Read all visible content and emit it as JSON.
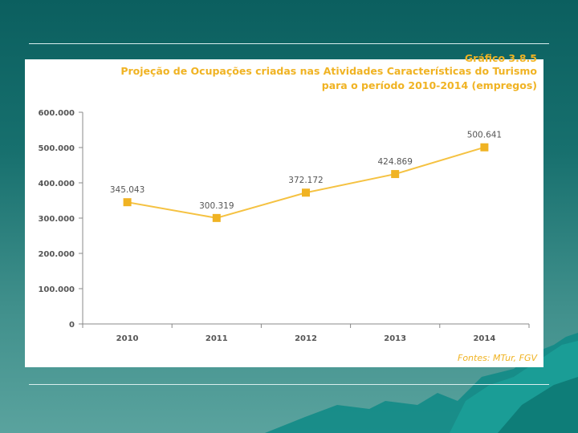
{
  "slide": {
    "background_color": "#17706e",
    "accent_color": "#f0b323",
    "line_color": "#f5c242",
    "marker_color": "#f0b323"
  },
  "chart_data": {
    "type": "line",
    "title_cut": "Gráfico 3.8.5",
    "title": "Projeção de Ocupações criadas nas Atividades Características do Turismo",
    "subtitle": "para o período 2010-2014 (empregos)",
    "source": "Fontes: MTur, FGV",
    "x": [
      "2010",
      "2011",
      "2012",
      "2013",
      "2014"
    ],
    "series": [
      {
        "name": "Ocupações",
        "values": [
          345043,
          300319,
          372172,
          424869,
          500641
        ],
        "labels": [
          "345.043",
          "300.319",
          "372.172",
          "424.869",
          "500.641"
        ]
      }
    ],
    "ylim": [
      0,
      600000
    ],
    "yticks": [
      0,
      100000,
      200000,
      300000,
      400000,
      500000,
      600000
    ],
    "ytick_labels": [
      "0",
      "100.000",
      "200.000",
      "300.000",
      "400.000",
      "500.000",
      "600.000"
    ],
    "xlabel": "",
    "ylabel": "",
    "grid": false
  }
}
